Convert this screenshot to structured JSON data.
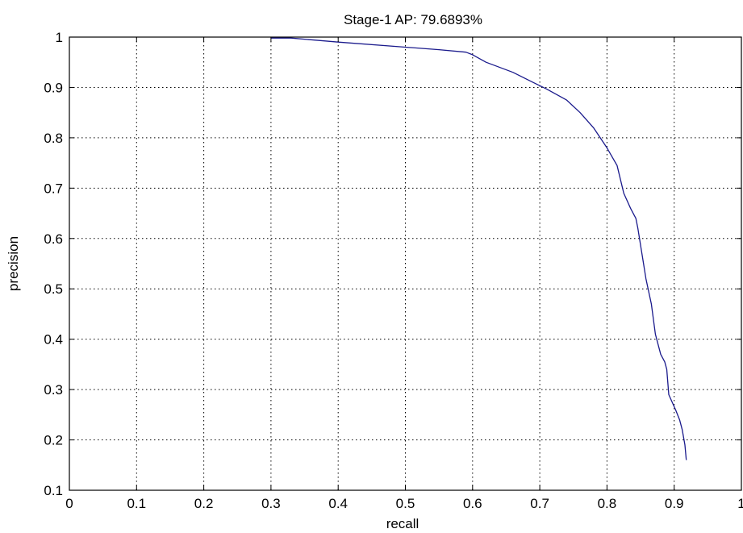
{
  "chart_data": {
    "type": "line",
    "title": "Stage-1  AP: 79.6893%",
    "xlabel": "recall",
    "ylabel": "precision",
    "xlim": [
      0,
      1
    ],
    "ylim": [
      0.1,
      1
    ],
    "xticks": [
      0,
      0.1,
      0.2,
      0.3,
      0.4,
      0.5,
      0.6,
      0.7,
      0.8,
      0.9,
      1
    ],
    "yticks": [
      0.1,
      0.2,
      0.3,
      0.4,
      0.5,
      0.6,
      0.7,
      0.8,
      0.9,
      1
    ],
    "xtick_labels": [
      "0",
      "0.1",
      "0.2",
      "0.3",
      "0.4",
      "0.5",
      "0.6",
      "0.7",
      "0.8",
      "0.9",
      "1"
    ],
    "ytick_labels": [
      "0.1",
      "0.2",
      "0.3",
      "0.4",
      "0.5",
      "0.6",
      "0.7",
      "0.8",
      "0.9",
      "1"
    ],
    "grid": true,
    "grid_style": "dotted",
    "legend": "none",
    "series_color": "#1a1a8c",
    "series": [
      {
        "x": [
          0.3,
          0.33,
          0.4,
          0.5,
          0.55,
          0.59,
          0.6,
          0.62,
          0.66,
          0.69,
          0.71,
          0.74,
          0.76,
          0.78,
          0.8,
          0.815,
          0.825,
          0.835,
          0.843,
          0.846,
          0.852,
          0.858,
          0.866,
          0.872,
          0.88,
          0.886,
          0.889,
          0.892,
          0.902,
          0.908,
          0.912,
          0.916,
          0.918
        ],
        "y": [
          0.998,
          0.998,
          0.99,
          0.98,
          0.975,
          0.97,
          0.965,
          0.95,
          0.93,
          0.91,
          0.897,
          0.875,
          0.85,
          0.82,
          0.78,
          0.745,
          0.69,
          0.66,
          0.64,
          0.62,
          0.57,
          0.52,
          0.47,
          0.41,
          0.37,
          0.355,
          0.34,
          0.29,
          0.26,
          0.24,
          0.22,
          0.19,
          0.16
        ]
      }
    ]
  }
}
